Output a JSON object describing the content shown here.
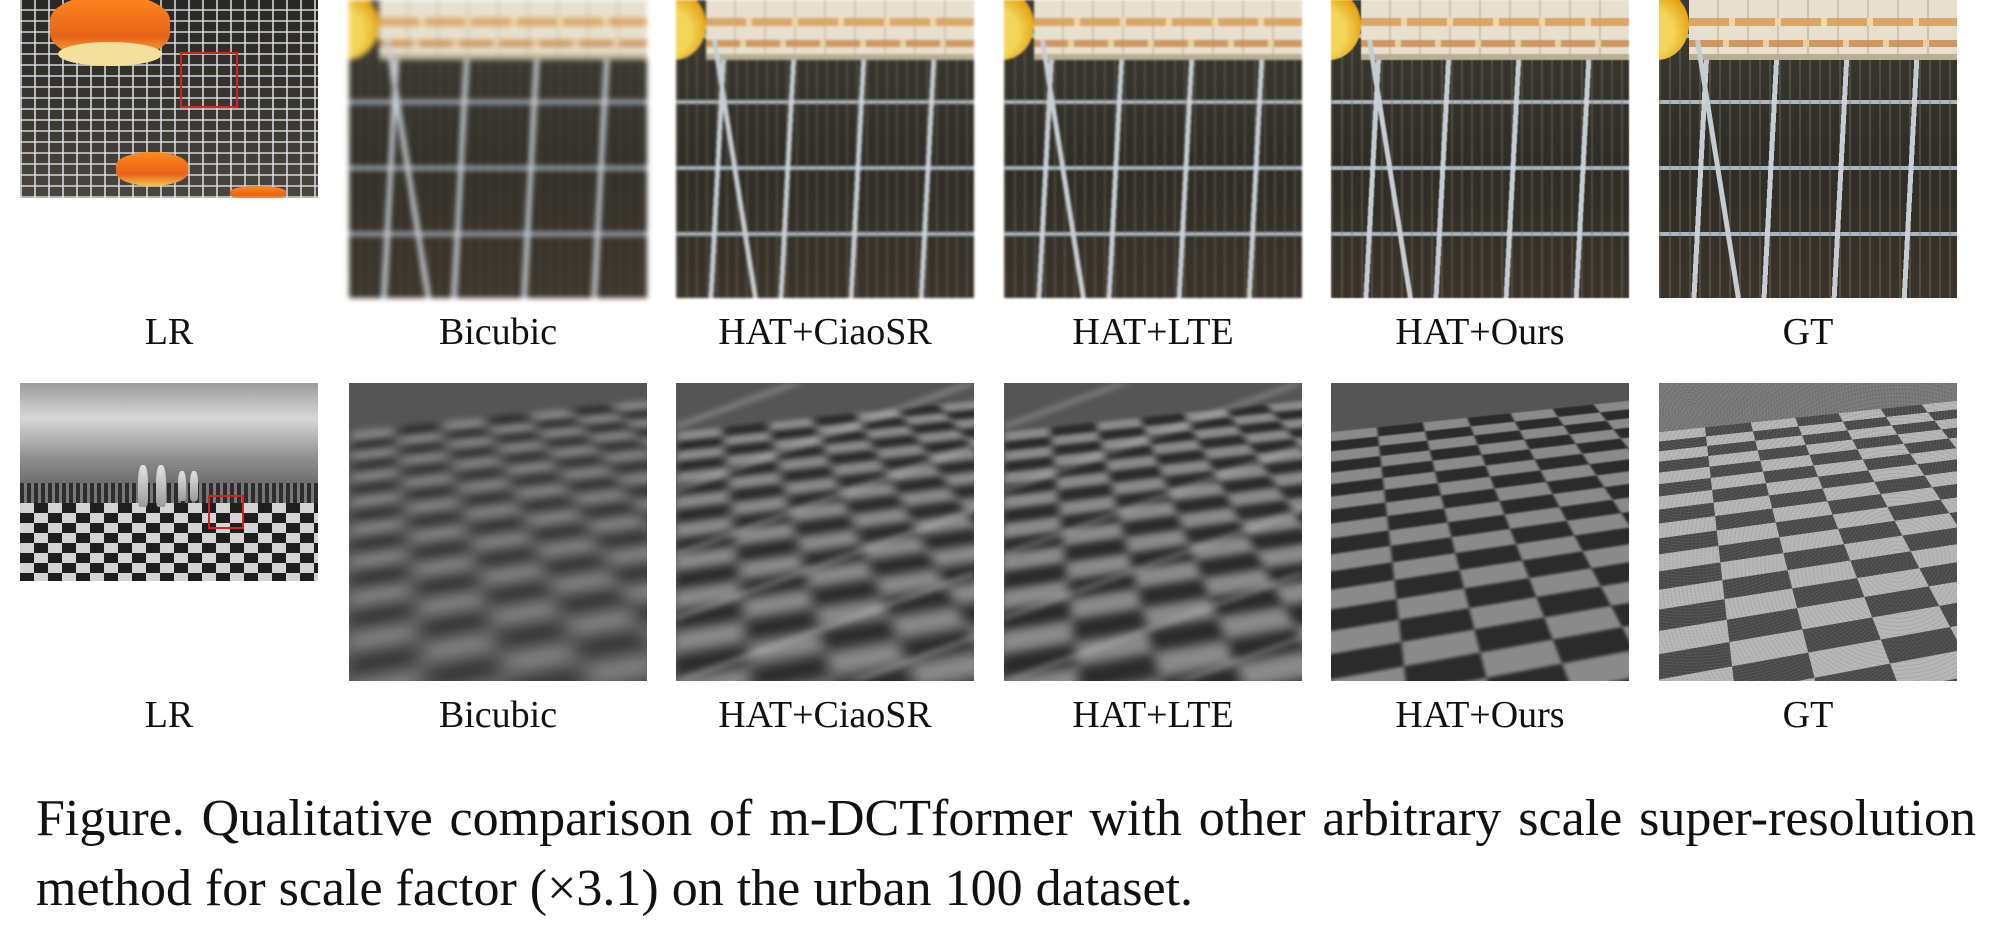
{
  "rows": [
    {
      "labels": [
        "LR",
        "Bicubic",
        "HAT+CiaoSR",
        "HAT+LTE",
        "HAT+Ours",
        "GT"
      ]
    },
    {
      "labels": [
        "LR",
        "Bicubic",
        "HAT+CiaoSR",
        "HAT+LTE",
        "HAT+Ours",
        "GT"
      ]
    }
  ],
  "caption": "Figure. Qualitative comparison of m-DCTformer with other arbitrary scale super-resolution method for scale factor (×3.1) on the urban 100 dataset.",
  "colors": {
    "highlight_box": "#d72020",
    "lamp": "#e8621a"
  }
}
